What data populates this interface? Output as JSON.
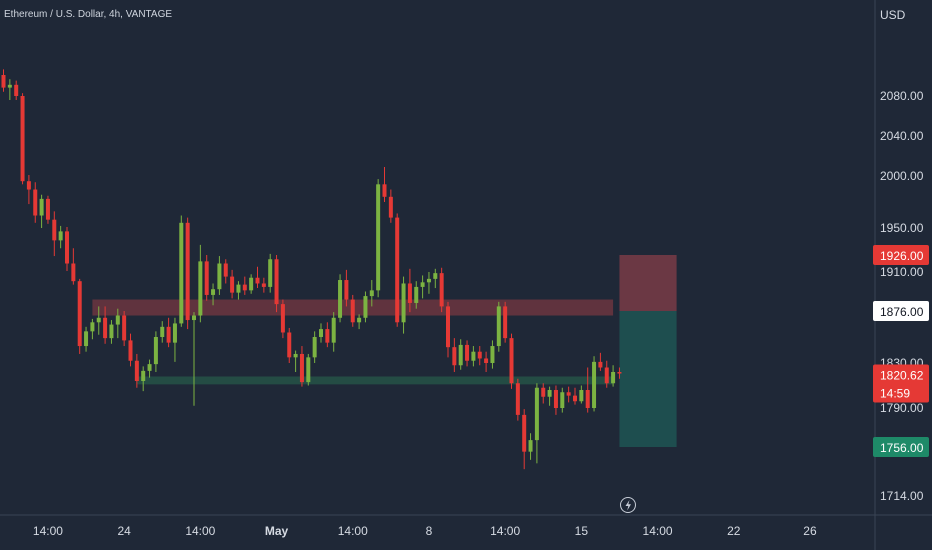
{
  "chart_data": {
    "type": "candlestick",
    "title": "Ethereum / U.S. Dollar, 4h, VANTAGE",
    "currency": "USD",
    "y_ticks": [
      2080,
      2040,
      2000,
      1950,
      1910,
      1830,
      1790,
      1756,
      1714
    ],
    "y_tick_labels": [
      "2080.00",
      "2040.00",
      "2000.00",
      "1950.00",
      "1910.00",
      "1830.00",
      "1790.00",
      "1756.00",
      "1714.00"
    ],
    "x_ticks": [
      {
        "label": "14:00",
        "bar": 7
      },
      {
        "label": "24",
        "bar": 19
      },
      {
        "label": "14:00",
        "bar": 31
      },
      {
        "label": "May",
        "bar": 43
      },
      {
        "label": "14:00",
        "bar": 55
      },
      {
        "label": "8",
        "bar": 67
      },
      {
        "label": "14:00",
        "bar": 79
      },
      {
        "label": "15",
        "bar": 91
      },
      {
        "label": "14:00",
        "bar": 103
      },
      {
        "label": "22",
        "bar": 115
      },
      {
        "label": "26",
        "bar": 127
      }
    ],
    "price_labels": [
      {
        "value": 1926,
        "text": "1926.00",
        "style": "stop"
      },
      {
        "value": 1876,
        "text": "1876.00",
        "style": "entry"
      },
      {
        "value": 1820.62,
        "text": "1820.62",
        "countdown": "14:59",
        "style": "last"
      },
      {
        "value": 1756,
        "text": "1756.00",
        "style": "target"
      }
    ],
    "zones": [
      {
        "name": "resistance",
        "low": 1872,
        "high": 1886,
        "from_bar": 14,
        "to_bar": 96
      },
      {
        "name": "support",
        "low": 1811,
        "high": 1818,
        "from_bar": 21,
        "to_bar": 96
      }
    ],
    "position": {
      "type": "short",
      "entry": 1876,
      "stop": 1926,
      "target": 1756,
      "from_bar": 97,
      "to_bar": 106
    },
    "candles": [
      [
        2095,
        2099,
        2083,
        2086
      ],
      [
        2086,
        2092,
        2076,
        2088
      ],
      [
        2088,
        2091,
        2076,
        2080
      ],
      [
        2080,
        2082,
        1992,
        1995
      ],
      [
        1995,
        2001,
        1973,
        1987
      ],
      [
        1987,
        1994,
        1955,
        1962
      ],
      [
        1962,
        1982,
        1950,
        1978
      ],
      [
        1978,
        1981,
        1954,
        1958
      ],
      [
        1958,
        1966,
        1925,
        1939
      ],
      [
        1939,
        1952,
        1932,
        1947
      ],
      [
        1947,
        1951,
        1911,
        1918
      ],
      [
        1918,
        1932,
        1899,
        1902
      ],
      [
        1902,
        1904,
        1838,
        1845
      ],
      [
        1845,
        1862,
        1840,
        1858
      ],
      [
        1858,
        1869,
        1851,
        1866
      ],
      [
        1866,
        1880,
        1855,
        1870
      ],
      [
        1870,
        1880,
        1847,
        1852
      ],
      [
        1852,
        1868,
        1847,
        1864
      ],
      [
        1864,
        1878,
        1852,
        1872
      ],
      [
        1872,
        1876,
        1845,
        1850
      ],
      [
        1850,
        1856,
        1827,
        1832
      ],
      [
        1832,
        1838,
        1808,
        1814
      ],
      [
        1814,
        1827,
        1805,
        1823
      ],
      [
        1823,
        1833,
        1817,
        1829
      ],
      [
        1829,
        1858,
        1822,
        1853
      ],
      [
        1853,
        1867,
        1848,
        1862
      ],
      [
        1862,
        1870,
        1844,
        1848
      ],
      [
        1848,
        1870,
        1831,
        1865
      ],
      [
        1865,
        1962,
        1862,
        1955
      ],
      [
        1955,
        1960,
        1860,
        1868
      ],
      [
        1868,
        1875,
        1792,
        1872
      ],
      [
        1872,
        1935,
        1866,
        1920
      ],
      [
        1920,
        1926,
        1885,
        1890
      ],
      [
        1890,
        1900,
        1881,
        1895
      ],
      [
        1895,
        1925,
        1890,
        1918
      ],
      [
        1918,
        1922,
        1900,
        1906
      ],
      [
        1906,
        1912,
        1887,
        1892
      ],
      [
        1892,
        1902,
        1886,
        1899
      ],
      [
        1899,
        1906,
        1890,
        1894
      ],
      [
        1894,
        1908,
        1891,
        1905
      ],
      [
        1905,
        1915,
        1896,
        1900
      ],
      [
        1900,
        1905,
        1892,
        1897
      ],
      [
        1897,
        1927,
        1892,
        1922
      ],
      [
        1922,
        1926,
        1875,
        1882
      ],
      [
        1882,
        1886,
        1852,
        1857
      ],
      [
        1857,
        1861,
        1830,
        1835
      ],
      [
        1835,
        1841,
        1822,
        1838
      ],
      [
        1838,
        1845,
        1809,
        1813
      ],
      [
        1813,
        1838,
        1810,
        1835
      ],
      [
        1835,
        1858,
        1830,
        1853
      ],
      [
        1853,
        1865,
        1848,
        1860
      ],
      [
        1860,
        1866,
        1844,
        1848
      ],
      [
        1848,
        1875,
        1840,
        1870
      ],
      [
        1870,
        1908,
        1866,
        1903
      ],
      [
        1903,
        1912,
        1880,
        1886
      ],
      [
        1886,
        1890,
        1862,
        1866
      ],
      [
        1866,
        1873,
        1860,
        1870
      ],
      [
        1870,
        1893,
        1866,
        1889
      ],
      [
        1889,
        1903,
        1880,
        1894
      ],
      [
        1894,
        1997,
        1888,
        1992
      ],
      [
        1992,
        2009,
        1975,
        1980
      ],
      [
        1980,
        1987,
        1955,
        1960
      ],
      [
        1960,
        1964,
        1862,
        1866
      ],
      [
        1866,
        1906,
        1856,
        1900
      ],
      [
        1900,
        1913,
        1875,
        1883
      ],
      [
        1883,
        1902,
        1878,
        1897
      ],
      [
        1897,
        1907,
        1887,
        1901
      ],
      [
        1901,
        1910,
        1891,
        1904
      ],
      [
        1904,
        1913,
        1896,
        1909
      ],
      [
        1909,
        1914,
        1875,
        1880
      ],
      [
        1880,
        1884,
        1835,
        1844
      ],
      [
        1844,
        1852,
        1822,
        1828
      ],
      [
        1828,
        1851,
        1824,
        1846
      ],
      [
        1846,
        1850,
        1827,
        1832
      ],
      [
        1832,
        1845,
        1827,
        1840
      ],
      [
        1840,
        1845,
        1828,
        1834
      ],
      [
        1834,
        1840,
        1822,
        1830
      ],
      [
        1830,
        1850,
        1825,
        1845
      ],
      [
        1845,
        1884,
        1840,
        1880
      ],
      [
        1880,
        1884,
        1848,
        1852
      ],
      [
        1852,
        1856,
        1807,
        1812
      ],
      [
        1812,
        1816,
        1779,
        1784
      ],
      [
        1784,
        1789,
        1737,
        1752
      ],
      [
        1752,
        1768,
        1745,
        1762
      ],
      [
        1762,
        1812,
        1742,
        1808
      ],
      [
        1808,
        1812,
        1794,
        1800
      ],
      [
        1800,
        1809,
        1792,
        1806
      ],
      [
        1806,
        1810,
        1784,
        1790
      ],
      [
        1790,
        1808,
        1786,
        1804
      ],
      [
        1804,
        1809,
        1795,
        1801
      ],
      [
        1801,
        1808,
        1793,
        1796
      ],
      [
        1796,
        1810,
        1794,
        1806
      ],
      [
        1806,
        1826,
        1786,
        1790
      ],
      [
        1790,
        1836,
        1787,
        1831
      ],
      [
        1831,
        1839,
        1823,
        1826
      ],
      [
        1826,
        1832,
        1808,
        1812
      ],
      [
        1812,
        1828,
        1809,
        1822
      ],
      [
        1822,
        1826,
        1816,
        1820.62
      ]
    ]
  }
}
